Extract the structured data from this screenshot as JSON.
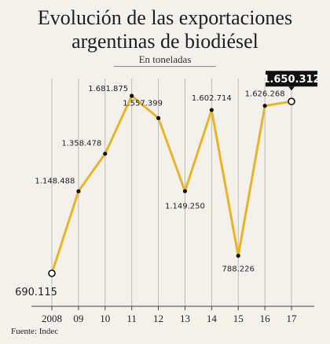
{
  "header": {
    "title_line1": "Evolución de las exportaciones",
    "title_line2": "argentinas de biodiésel",
    "subtitle": "En toneladas"
  },
  "footer": {
    "source": "Fuente: Indec"
  },
  "colors": {
    "line": "#e8b427",
    "highlight_bg": "#111111",
    "highlight_text": "#ffffff"
  },
  "chart_data": {
    "type": "line",
    "title": "Evolución de las exportaciones argentinas de biodiésel",
    "subtitle": "En toneladas",
    "xlabel": "",
    "ylabel": "",
    "categories": [
      "2008",
      "09",
      "10",
      "11",
      "12",
      "13",
      "14",
      "15",
      "16",
      "17"
    ],
    "series": [
      {
        "values": [
          690115,
          1148488,
          1358478,
          1681875,
          1557399,
          1149250,
          1602714,
          788226,
          1626268,
          1650312
        ],
        "labels": [
          "690.115",
          "1.148.488",
          "1.358.478",
          "1.681.875",
          "1.557.399",
          "1.149.250",
          "1.602.714",
          "788.226",
          "1.626.268",
          "1.650.312"
        ]
      }
    ],
    "highlight_index": 9,
    "ylim": [
      600000,
      1700000
    ],
    "grid": "vertical"
  }
}
